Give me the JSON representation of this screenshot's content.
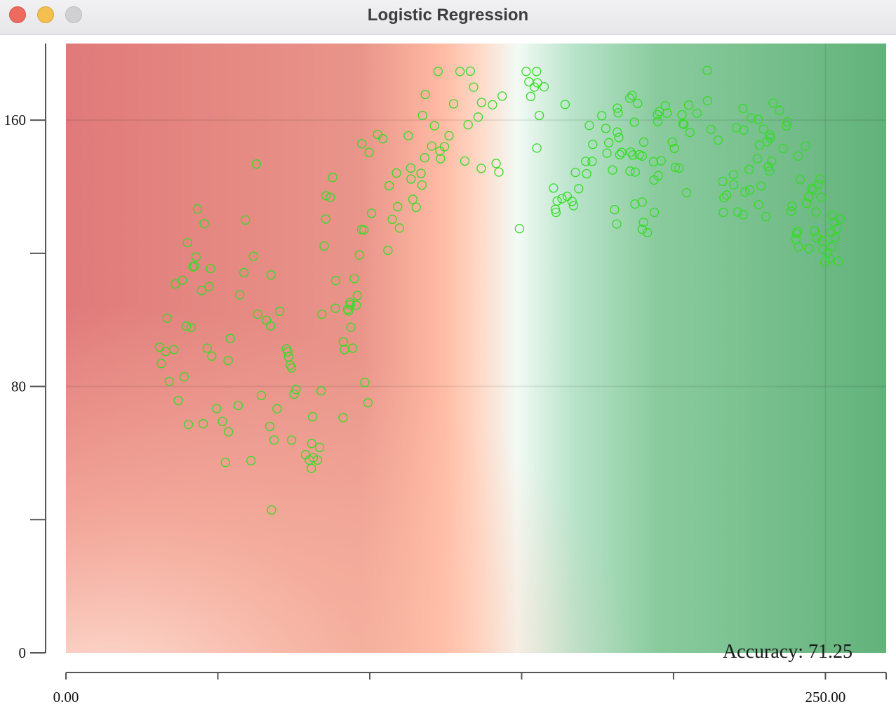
{
  "window": {
    "title": "Logistic Regression"
  },
  "colors": {
    "class_red": "#e03020",
    "class_green": "#33dd22",
    "region_red": "#e07a7a",
    "region_salmon": "#ffbfa6",
    "region_white": "#f4fbf7",
    "region_green": "#62b27a"
  },
  "chart_data": {
    "type": "scatter",
    "title": "",
    "xlabel": "",
    "ylabel": "",
    "xlim": [
      0,
      270
    ],
    "ylim": [
      0,
      183
    ],
    "x_ticks": [
      {
        "value": 0,
        "label": "0.00"
      },
      {
        "value": 50,
        "label": ""
      },
      {
        "value": 100,
        "label": ""
      },
      {
        "value": 150,
        "label": ""
      },
      {
        "value": 200,
        "label": ""
      },
      {
        "value": 250,
        "label": "250.00"
      }
    ],
    "y_ticks": [
      {
        "value": 0,
        "label": "0"
      },
      {
        "value": 40,
        "label": ""
      },
      {
        "value": 80,
        "label": "80"
      },
      {
        "value": 120,
        "label": ""
      },
      {
        "value": 160,
        "label": "160"
      }
    ],
    "grid": {
      "x": [
        250
      ],
      "y": [
        80,
        160
      ]
    },
    "annotation": "Accuracy: 71.25",
    "series": [
      {
        "color": "green",
        "points": [
          [
            30.8,
            91.8
          ],
          [
            31.4,
            86.9
          ],
          [
            32.8,
            90.5
          ],
          [
            33.3,
            100.5
          ],
          [
            34,
            81.5
          ],
          [
            35.5,
            91.1
          ],
          [
            36,
            110.8
          ],
          [
            37,
            75.8
          ],
          [
            38.3,
            111.9
          ],
          [
            38.9,
            82.9
          ],
          [
            39.6,
            98.1
          ],
          [
            40,
            123.2
          ],
          [
            40.3,
            68.6
          ],
          [
            41.2,
            97.7
          ],
          [
            41.8,
            115.9
          ],
          [
            42.3,
            116.1
          ],
          [
            42.8,
            118.9
          ],
          [
            43.3,
            133.3
          ],
          [
            44.6,
            108.8
          ],
          [
            45.2,
            68.8
          ],
          [
            45.5,
            128.9
          ],
          [
            46.5,
            91.5
          ],
          [
            47.1,
            110
          ],
          [
            47.6,
            115.4
          ],
          [
            48,
            89.1
          ],
          [
            49.6,
            73.4
          ],
          [
            51.5,
            69.5
          ],
          [
            52.5,
            57.2
          ],
          [
            53.4,
            87.8
          ],
          [
            53.5,
            66.4
          ],
          [
            54.1,
            94.4
          ],
          [
            56.7,
            74.3
          ],
          [
            57.2,
            107.5
          ],
          [
            58.6,
            114.2
          ],
          [
            59.1,
            130
          ],
          [
            60.9,
            57.7
          ],
          [
            61.7,
            119.1
          ],
          [
            62.7,
            146.8
          ],
          [
            63.1,
            101.7
          ],
          [
            64.3,
            77.3
          ],
          [
            66,
            99.9
          ],
          [
            67.1,
            68
          ],
          [
            67.4,
            98.2
          ],
          [
            67.5,
            113.5
          ],
          [
            67.7,
            42.9
          ],
          [
            68.5,
            63.9
          ],
          [
            69.5,
            73.3
          ],
          [
            70.4,
            102.6
          ],
          [
            72.6,
            91.3
          ],
          [
            73,
            90.4
          ],
          [
            73.3,
            88.9
          ],
          [
            73.8,
            86.4
          ],
          [
            74.3,
            85.6
          ],
          [
            74.3,
            63.9
          ],
          [
            75.1,
            77.7
          ],
          [
            75.7,
            79.1
          ],
          [
            78.9,
            59.5
          ],
          [
            80.1,
            57.9
          ],
          [
            80.8,
            55.4
          ],
          [
            80.9,
            62.9
          ],
          [
            81.2,
            70.9
          ],
          [
            81.4,
            58.6
          ],
          [
            82.8,
            57.9
          ],
          [
            83.5,
            61.7
          ],
          [
            84,
            78.7
          ],
          [
            84.2,
            101.7
          ],
          [
            85,
            122.2
          ],
          [
            85.5,
            130.3
          ],
          [
            85.6,
            137.3
          ],
          [
            87,
            136.8
          ],
          [
            87.8,
            142.8
          ],
          [
            88.7,
            103.5
          ],
          [
            88.8,
            111.8
          ],
          [
            91.2,
            70.6
          ],
          [
            91.3,
            93.4
          ],
          [
            91.7,
            91.1
          ],
          [
            92.7,
            103.2
          ],
          [
            93,
            102.7
          ],
          [
            93.5,
            105.2
          ],
          [
            93.6,
            104.5
          ],
          [
            93.8,
            97.8
          ],
          [
            94.4,
            91.5
          ],
          [
            94.9,
            112.4
          ],
          [
            95.6,
            104.4
          ],
          [
            95.9,
            107.3
          ],
          [
            96.6,
            119.5
          ],
          [
            97.3,
            127.1
          ],
          [
            97.4,
            152.9
          ],
          [
            98.1,
            127
          ],
          [
            98.4,
            81.2
          ],
          [
            99.4,
            75.1
          ],
          [
            99.8,
            150.3
          ],
          [
            100.6,
            132
          ],
          [
            102.6,
            155.7
          ],
          [
            104.3,
            154.4
          ],
          [
            106,
            120.9
          ],
          [
            106.4,
            140.3
          ],
          [
            107.4,
            130.2
          ],
          [
            108.8,
            144.1
          ],
          [
            109.2,
            134
          ],
          [
            109.8,
            127.6
          ],
          [
            112.7,
            155.3
          ],
          [
            113.5,
            145.6
          ],
          [
            113.6,
            142.3
          ],
          [
            114.2,
            136.2
          ],
          [
            115.3,
            133.8
          ],
          [
            116.9,
            144
          ],
          [
            117.2,
            140.5
          ],
          [
            117.4,
            161.4
          ],
          [
            118.1,
            148.7
          ],
          [
            118.3,
            167.7
          ],
          [
            120.4,
            152.2
          ],
          [
            121.3,
            158.3
          ],
          [
            122.5,
            174.6
          ],
          [
            123.1,
            150.7
          ],
          [
            123.3,
            148.4
          ],
          [
            124.6,
            152
          ],
          [
            126.1,
            155.3
          ],
          [
            127.6,
            164.9
          ],
          [
            129.7,
            174.6
          ],
          [
            131.3,
            147.7
          ],
          [
            132.4,
            158.6
          ],
          [
            133.1,
            174.7
          ],
          [
            134.2,
            169.9
          ],
          [
            135.7,
            160.9
          ],
          [
            136.7,
            145.5
          ],
          [
            136.8,
            165.3
          ],
          [
            140.4,
            164.6
          ],
          [
            141.6,
            147
          ],
          [
            142.5,
            144.4
          ],
          [
            143.6,
            167.2
          ],
          [
            149.3,
            127.4
          ],
          [
            151.5,
            174.6
          ],
          [
            152.4,
            171.5
          ],
          [
            153,
            167.1
          ],
          [
            154.2,
            169.9
          ],
          [
            154.9,
            174.6
          ],
          [
            155.2,
            171.2
          ],
          [
            155,
            151.6
          ],
          [
            155.8,
            161.4
          ],
          [
            157.4,
            170
          ],
          [
            160.5,
            139.6
          ],
          [
            161.1,
            133.2
          ],
          [
            161.3,
            132.3
          ],
          [
            161.7,
            135.7
          ],
          [
            163.3,
            136.4
          ],
          [
            164.3,
            164.7
          ],
          [
            165,
            137.1
          ],
          [
            166.6,
            135.6
          ],
          [
            167.1,
            134.3
          ],
          [
            167.7,
            144.3
          ],
          [
            168.8,
            139.4
          ],
          [
            171.1,
            147.6
          ],
          [
            171.4,
            143.9
          ],
          [
            172.3,
            158.4
          ],
          [
            173.2,
            147.6
          ],
          [
            173.4,
            152.7
          ],
          [
            176.4,
            161.3
          ],
          [
            177.7,
            157.5
          ],
          [
            178.1,
            150.1
          ],
          [
            178.7,
            153.2
          ],
          [
            179.9,
            145
          ],
          [
            180.6,
            133.1
          ],
          [
            181.3,
            128.8
          ],
          [
            181.5,
            163.6
          ],
          [
            181.5,
            156.4
          ],
          [
            181.8,
            162.2
          ],
          [
            182,
            154.8
          ],
          [
            182.3,
            149.6
          ],
          [
            182.9,
            150.3
          ],
          [
            185.6,
            166.6
          ],
          [
            185.7,
            144.7
          ],
          [
            185.9,
            150.4
          ],
          [
            186.4,
            167.4
          ],
          [
            186.6,
            149.5
          ],
          [
            187.1,
            159.4
          ],
          [
            187.3,
            134.8
          ],
          [
            187.4,
            144.4
          ],
          [
            188.2,
            165
          ],
          [
            188.7,
            149.6
          ],
          [
            189.7,
            127.2
          ],
          [
            189.7,
            135.4
          ],
          [
            189.7,
            149.2
          ],
          [
            190.1,
            129.3
          ],
          [
            190.2,
            153.4
          ],
          [
            191.4,
            126.2
          ],
          [
            193.4,
            147.5
          ],
          [
            193.6,
            142
          ],
          [
            193.7,
            132.3
          ],
          [
            194.7,
            161.6
          ],
          [
            194.8,
            159.6
          ],
          [
            195,
            143.3
          ],
          [
            195.3,
            162.6
          ],
          [
            195.9,
            147.8
          ],
          [
            197.3,
            164.3
          ],
          [
            197.9,
            162.1
          ],
          [
            199.6,
            153.4
          ],
          [
            200.3,
            151.5
          ],
          [
            200.6,
            145.8
          ],
          [
            201.8,
            145.6
          ],
          [
            202.8,
            161.6
          ],
          [
            203.1,
            158.9
          ],
          [
            203.4,
            158.7
          ],
          [
            204.3,
            138.2
          ],
          [
            205,
            164.5
          ],
          [
            205.4,
            156.3
          ],
          [
            207.7,
            162.1
          ],
          [
            211.1,
            174.9
          ],
          [
            211.2,
            165.8
          ],
          [
            212.3,
            157.2
          ],
          [
            214.7,
            154
          ],
          [
            216.2,
            141.6
          ],
          [
            216.4,
            132.3
          ],
          [
            216.6,
            136.7
          ],
          [
            217.5,
            137.5
          ],
          [
            219.7,
            143.6
          ],
          [
            219.8,
            140.6
          ],
          [
            220.7,
            157.7
          ],
          [
            221.1,
            132.4
          ],
          [
            222.9,
            131.6
          ],
          [
            222.9,
            163.5
          ],
          [
            223.1,
            157
          ],
          [
            223.5,
            138.4
          ],
          [
            224.9,
            145.2
          ],
          [
            225.1,
            139
          ],
          [
            225.6,
            160.6
          ],
          [
            227.6,
            148.4
          ],
          [
            227.9,
            160.2
          ],
          [
            228,
            134.6
          ],
          [
            228.3,
            152.5
          ],
          [
            228.8,
            140.2
          ],
          [
            229.6,
            157.3
          ],
          [
            230.4,
            131
          ],
          [
            230.8,
            153.5
          ],
          [
            231.2,
            146
          ],
          [
            231.6,
            144.7
          ],
          [
            231.7,
            155.5
          ],
          [
            231.9,
            154.7
          ],
          [
            232.3,
            147.7
          ],
          [
            232.8,
            165.1
          ],
          [
            234.9,
            162.9
          ],
          [
            236.1,
            151.5
          ],
          [
            237.2,
            158.3
          ],
          [
            237.4,
            159.5
          ],
          [
            238.7,
            132.6
          ],
          [
            239,
            134.2
          ],
          [
            240.3,
            124.2
          ],
          [
            240.5,
            126
          ],
          [
            240.8,
            126.6
          ],
          [
            241,
            149.2
          ],
          [
            241.1,
            121.9
          ],
          [
            241.7,
            142.1
          ],
          [
            243.4,
            152.2
          ],
          [
            243.8,
            135
          ],
          [
            244.5,
            121.4
          ],
          [
            244.5,
            137
          ],
          [
            245.5,
            139.5
          ],
          [
            245.9,
            139.1
          ],
          [
            246.4,
            126.8
          ],
          [
            246.9,
            132.4
          ],
          [
            247.1,
            124.6
          ],
          [
            247.7,
            140.6
          ],
          [
            248.2,
            142.3
          ],
          [
            248.6,
            136.8
          ],
          [
            249,
            123.7
          ],
          [
            249.2,
            121.2
          ],
          [
            249.8,
            117.4
          ],
          [
            250.7,
            120.1
          ],
          [
            251.3,
            118.5
          ],
          [
            251.8,
            126.2
          ],
          [
            252,
            121.9
          ],
          [
            252.2,
            131.4
          ],
          [
            252.7,
            129.3
          ],
          [
            253.2,
            124.8
          ],
          [
            254,
            127.4
          ],
          [
            254.2,
            117.6
          ],
          [
            254.8,
            130.3
          ]
        ]
      },
      {
        "color": "red",
        "points": []
      }
    ]
  }
}
